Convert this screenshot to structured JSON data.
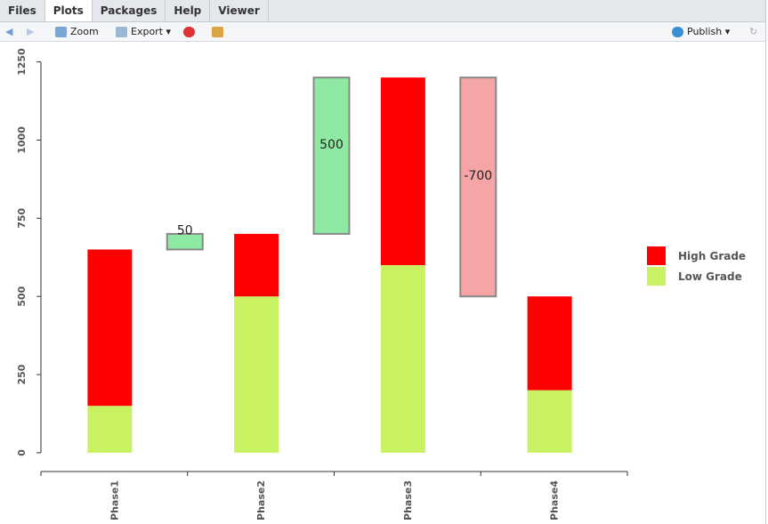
{
  "tabs": [
    "Files",
    "Plots",
    "Packages",
    "Help",
    "Viewer"
  ],
  "toolbar": {
    "zoom": "Zoom",
    "export": "Export",
    "publish": "Publish"
  },
  "chart_data": {
    "type": "waterfall-stacked-bar",
    "categories": [
      "Phase1",
      "Phase2",
      "Phase3",
      "Phase4"
    ],
    "series": [
      {
        "name": "High Grade",
        "color": "#ff0000",
        "values": [
          500,
          200,
          600,
          300
        ]
      },
      {
        "name": "Low Grade",
        "color": "#c9f263",
        "values": [
          150,
          500,
          600,
          200
        ]
      }
    ],
    "changes": {
      "values": [
        50,
        500,
        -700
      ],
      "positive_color": "#8eeaa2",
      "negative_color": "#f5a5a5"
    },
    "ylim": [
      -60,
      1300
    ],
    "yticks": [
      0,
      250,
      500,
      750,
      1000,
      1250
    ],
    "grid": false,
    "legend": "right"
  }
}
